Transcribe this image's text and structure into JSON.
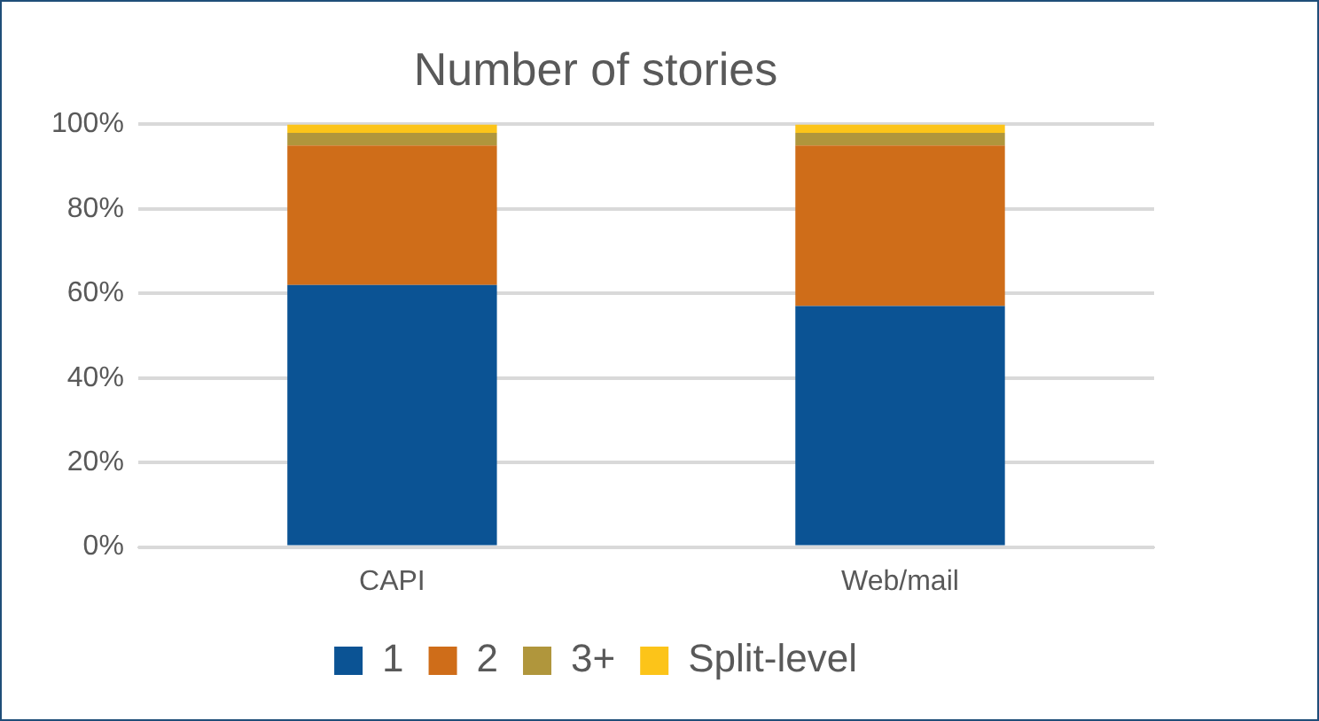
{
  "chart_data": {
    "type": "bar",
    "title": "Number of stories",
    "categories": [
      "CAPI",
      "Web/mail"
    ],
    "stacked": true,
    "series": [
      {
        "name": "1",
        "color": "#0b5394",
        "values": [
          62,
          57
        ]
      },
      {
        "name": "2",
        "color": "#cf6d19",
        "values": [
          33,
          38
        ]
      },
      {
        "name": "3+",
        "color": "#b0963c",
        "values": [
          3,
          3
        ]
      },
      {
        "name": "Split-level",
        "color": "#fcc419",
        "values": [
          2,
          2
        ]
      }
    ],
    "ylim": [
      0,
      100
    ],
    "yticks": [
      {
        "value": 0,
        "label": "0%"
      },
      {
        "value": 20,
        "label": "20%"
      },
      {
        "value": 40,
        "label": "40%"
      },
      {
        "value": 60,
        "label": "60%"
      },
      {
        "value": 80,
        "label": "80%"
      },
      {
        "value": 100,
        "label": "100%"
      }
    ],
    "grid": "y",
    "legend": "bottom"
  }
}
